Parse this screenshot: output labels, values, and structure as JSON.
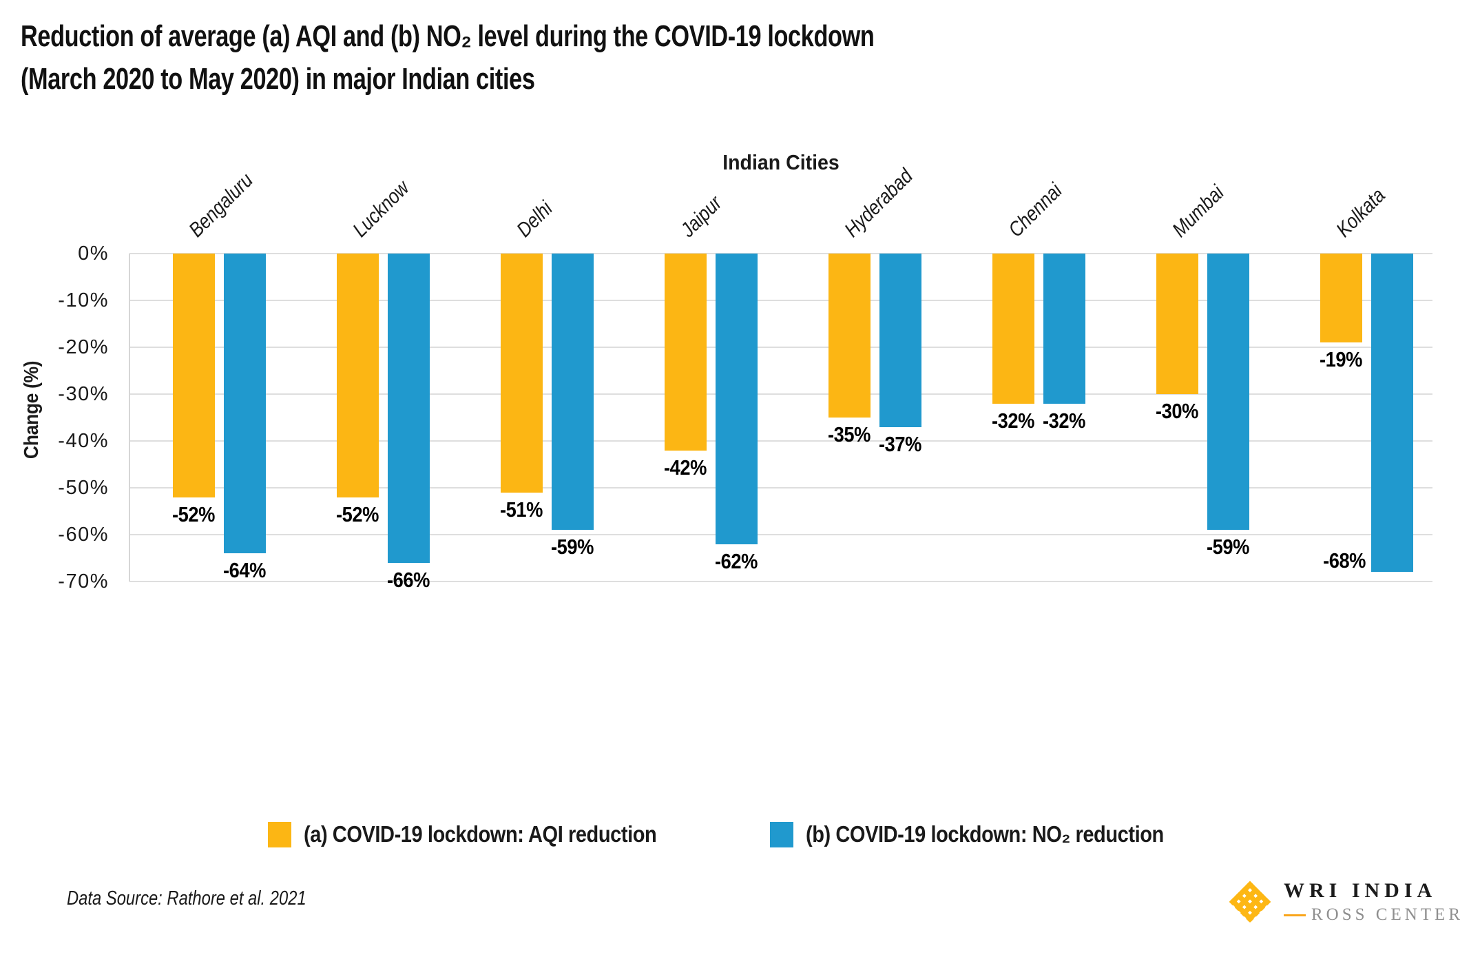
{
  "title": {
    "line1": "Reduction of average (a) AQI and (b) NO₂ level during the COVID-19 lockdown",
    "line2": "(March 2020 to May 2020) in major Indian cities"
  },
  "x_axis_title": "Indian Cities",
  "y_axis": {
    "title": "Change (%)",
    "ticks": [
      "0%",
      "-10%",
      "-20%",
      "-30%",
      "-40%",
      "-50%",
      "-60%",
      "-70%"
    ]
  },
  "chart_data": {
    "type": "bar",
    "categories": [
      "Bengaluru",
      "Lucknow",
      "Delhi",
      "Jaipur",
      "Hyderabad",
      "Chennai",
      "Mumbai",
      "Kolkata"
    ],
    "series": [
      {
        "name": "(a) COVID-19 lockdown: AQI reduction",
        "color": "#FCB614",
        "values": [
          -52,
          -52,
          -51,
          -42,
          -35,
          -32,
          -30,
          -19
        ]
      },
      {
        "name": "(b) COVID-19 lockdown: NO₂ reduction",
        "color": "#2099CE",
        "values": [
          -64,
          -66,
          -59,
          -62,
          -37,
          -32,
          -59,
          -68
        ]
      }
    ],
    "title": "Reduction of average (a) AQI and (b) NO₂ level during the COVID-19 lockdown (March 2020 to May 2020) in major Indian cities",
    "xlabel": "Indian Cities",
    "ylabel": "Change (%)",
    "ylim": [
      -70,
      0
    ],
    "grid": true,
    "legend_position": "bottom",
    "data_label_format": "{value}%"
  },
  "legend": {
    "items": [
      {
        "label": "(a) COVID-19 lockdown: AQI reduction",
        "color": "#FCB614"
      },
      {
        "label": "(b) COVID-19 lockdown: NO₂ reduction",
        "color": "#2099CE"
      }
    ]
  },
  "footer": {
    "data_source": "Data Source: Rathore et al. 2021"
  },
  "logo": {
    "org": "WRI INDIA",
    "sub": "ROSS CENTER",
    "icon_color": "#FDB714",
    "dash_color": "#F9A51B"
  }
}
